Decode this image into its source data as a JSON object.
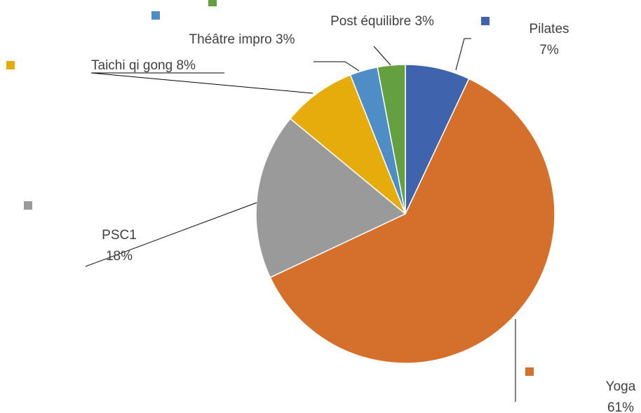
{
  "chart_data": {
    "type": "pie",
    "categories": [
      "Pilates",
      "Yoga",
      "PSC1",
      "Taichi qi gong",
      "Théâtre impro",
      "Post équilibre"
    ],
    "values": [
      7,
      61,
      18,
      8,
      3,
      3
    ],
    "value_labels": [
      "7%",
      "61%",
      "18%",
      "8%",
      "3%",
      "3%"
    ],
    "colors": [
      "#4063ae",
      "#d4702b",
      "#9a9a9a",
      "#e5ac0b",
      "#4f8dc6",
      "#64a03f"
    ]
  }
}
